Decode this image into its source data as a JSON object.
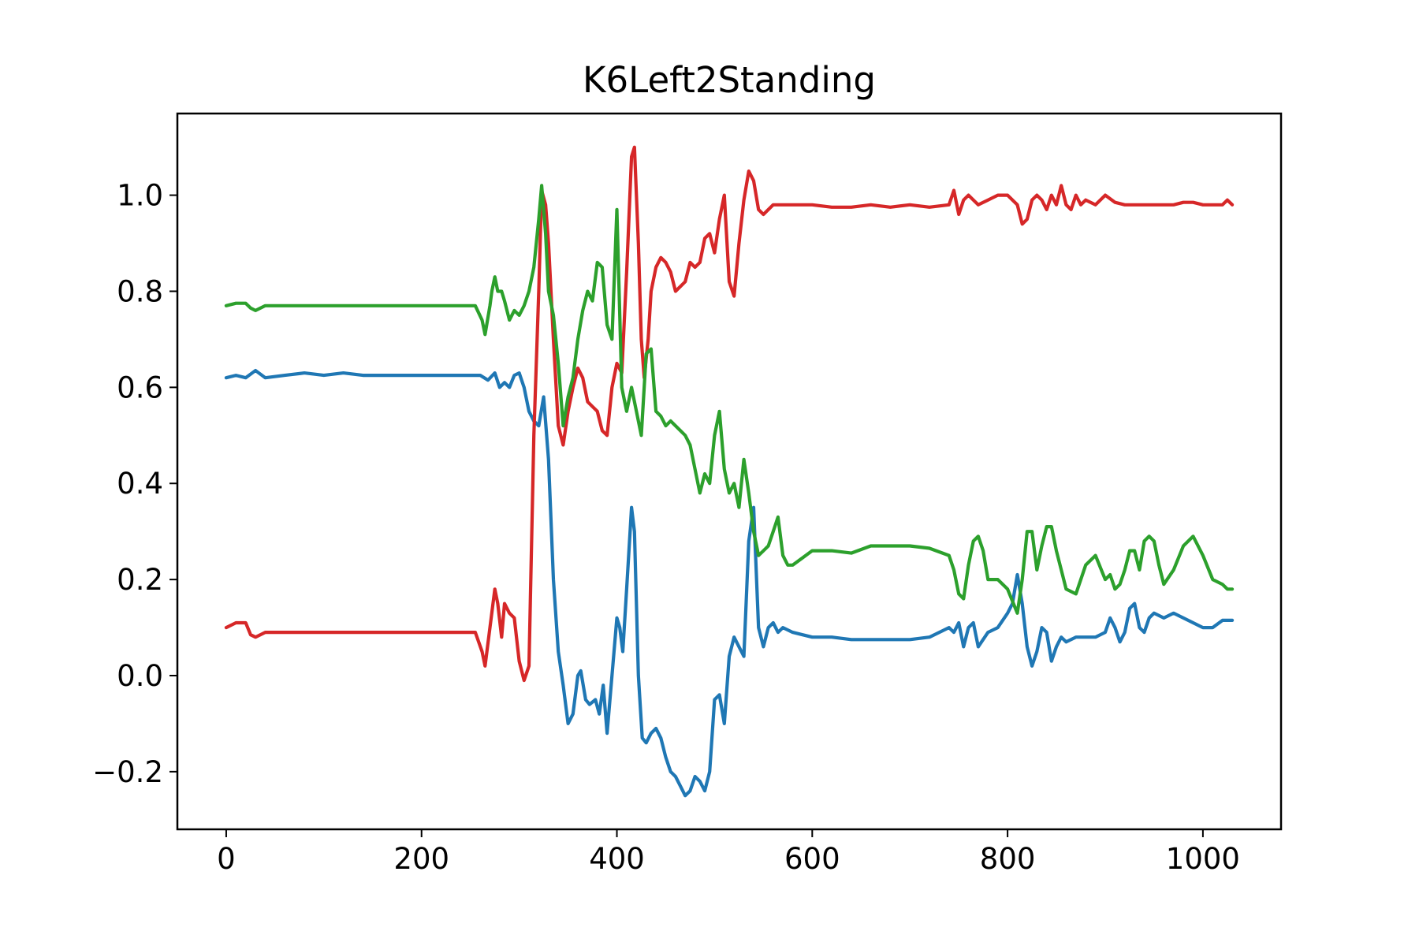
{
  "chart_data": {
    "type": "line",
    "title": "K6Left2Standing",
    "xlabel": "",
    "ylabel": "",
    "xlim": [
      -50,
      1080
    ],
    "ylim": [
      -0.32,
      1.17
    ],
    "xticks": [
      0,
      200,
      400,
      600,
      800,
      1000
    ],
    "yticks": [
      -0.2,
      0.0,
      0.2,
      0.4,
      0.6,
      0.8,
      1.0
    ],
    "xtick_labels": [
      "0",
      "200",
      "400",
      "600",
      "800",
      "1000"
    ],
    "ytick_labels": [
      "−0.2",
      "0.0",
      "0.2",
      "0.4",
      "0.6",
      "0.8",
      "1.0"
    ],
    "grid": false,
    "series": [
      {
        "color": "#1f77b4",
        "x": [
          0,
          10,
          20,
          30,
          40,
          60,
          80,
          100,
          120,
          140,
          160,
          180,
          200,
          220,
          240,
          260,
          268,
          275,
          280,
          285,
          290,
          295,
          300,
          305,
          310,
          315,
          320,
          325,
          330,
          335,
          340,
          345,
          350,
          355,
          360,
          363,
          368,
          372,
          378,
          382,
          386,
          390,
          395,
          400,
          403,
          406,
          410,
          415,
          418,
          422,
          426,
          430,
          435,
          440,
          445,
          450,
          455,
          460,
          465,
          470,
          475,
          480,
          485,
          490,
          495,
          500,
          505,
          510,
          515,
          520,
          525,
          530,
          535,
          540,
          545,
          550,
          555,
          560,
          565,
          570,
          580,
          600,
          620,
          640,
          660,
          680,
          700,
          720,
          740,
          745,
          750,
          755,
          760,
          765,
          770,
          780,
          790,
          800,
          805,
          810,
          815,
          820,
          825,
          830,
          835,
          840,
          845,
          850,
          855,
          860,
          870,
          880,
          890,
          900,
          905,
          910,
          915,
          920,
          925,
          930,
          935,
          940,
          945,
          950,
          960,
          970,
          980,
          990,
          1000,
          1010,
          1020,
          1030
        ],
        "y": [
          0.62,
          0.625,
          0.62,
          0.635,
          0.62,
          0.625,
          0.63,
          0.625,
          0.63,
          0.625,
          0.625,
          0.625,
          0.625,
          0.625,
          0.625,
          0.625,
          0.615,
          0.63,
          0.6,
          0.61,
          0.6,
          0.625,
          0.63,
          0.6,
          0.55,
          0.53,
          0.52,
          0.58,
          0.45,
          0.2,
          0.05,
          -0.02,
          -0.1,
          -0.08,
          0.0,
          0.01,
          -0.05,
          -0.06,
          -0.05,
          -0.08,
          -0.02,
          -0.12,
          0.0,
          0.12,
          0.1,
          0.05,
          0.18,
          0.35,
          0.3,
          0.0,
          -0.13,
          -0.14,
          -0.12,
          -0.11,
          -0.13,
          -0.17,
          -0.2,
          -0.21,
          -0.23,
          -0.25,
          -0.24,
          -0.21,
          -0.22,
          -0.24,
          -0.2,
          -0.05,
          -0.04,
          -0.1,
          0.04,
          0.08,
          0.06,
          0.04,
          0.28,
          0.35,
          0.1,
          0.06,
          0.1,
          0.11,
          0.09,
          0.1,
          0.09,
          0.08,
          0.08,
          0.075,
          0.075,
          0.075,
          0.075,
          0.08,
          0.1,
          0.09,
          0.11,
          0.06,
          0.1,
          0.11,
          0.06,
          0.09,
          0.1,
          0.13,
          0.15,
          0.21,
          0.15,
          0.06,
          0.02,
          0.05,
          0.1,
          0.09,
          0.03,
          0.06,
          0.08,
          0.07,
          0.08,
          0.08,
          0.08,
          0.09,
          0.12,
          0.1,
          0.07,
          0.09,
          0.14,
          0.15,
          0.1,
          0.09,
          0.12,
          0.13,
          0.12,
          0.13,
          0.12,
          0.11,
          0.1,
          0.1,
          0.115,
          0.115
        ]
      },
      {
        "color": "#d62728",
        "x": [
          0,
          10,
          20,
          25,
          30,
          40,
          60,
          80,
          100,
          120,
          140,
          160,
          180,
          200,
          220,
          240,
          255,
          262,
          265,
          270,
          275,
          278,
          282,
          285,
          290,
          295,
          300,
          305,
          310,
          315,
          320,
          323,
          327,
          330,
          335,
          340,
          345,
          350,
          355,
          360,
          365,
          370,
          375,
          380,
          385,
          390,
          395,
          400,
          405,
          410,
          415,
          418,
          422,
          425,
          428,
          432,
          435,
          440,
          445,
          450,
          455,
          460,
          465,
          470,
          475,
          480,
          485,
          490,
          495,
          500,
          505,
          510,
          515,
          520,
          525,
          530,
          535,
          540,
          545,
          550,
          560,
          580,
          600,
          620,
          640,
          660,
          680,
          700,
          720,
          740,
          745,
          750,
          755,
          760,
          770,
          780,
          790,
          800,
          810,
          815,
          820,
          825,
          830,
          835,
          840,
          845,
          850,
          855,
          860,
          865,
          870,
          875,
          880,
          890,
          900,
          910,
          920,
          930,
          940,
          950,
          960,
          970,
          980,
          990,
          1000,
          1010,
          1020,
          1025,
          1030
        ],
        "y": [
          0.1,
          0.11,
          0.11,
          0.085,
          0.08,
          0.09,
          0.09,
          0.09,
          0.09,
          0.09,
          0.09,
          0.09,
          0.09,
          0.09,
          0.09,
          0.09,
          0.09,
          0.05,
          0.02,
          0.1,
          0.18,
          0.15,
          0.08,
          0.15,
          0.13,
          0.12,
          0.03,
          -0.01,
          0.02,
          0.5,
          0.8,
          1.01,
          0.98,
          0.9,
          0.7,
          0.52,
          0.48,
          0.55,
          0.6,
          0.64,
          0.62,
          0.57,
          0.56,
          0.55,
          0.51,
          0.5,
          0.6,
          0.65,
          0.63,
          0.84,
          1.08,
          1.1,
          0.9,
          0.7,
          0.62,
          0.7,
          0.8,
          0.85,
          0.87,
          0.86,
          0.84,
          0.8,
          0.81,
          0.82,
          0.86,
          0.85,
          0.86,
          0.91,
          0.92,
          0.88,
          0.95,
          1.0,
          0.82,
          0.79,
          0.9,
          0.99,
          1.05,
          1.03,
          0.97,
          0.96,
          0.98,
          0.98,
          0.98,
          0.975,
          0.975,
          0.98,
          0.975,
          0.98,
          0.975,
          0.98,
          1.01,
          0.96,
          0.99,
          1.0,
          0.98,
          0.99,
          1.0,
          1.0,
          0.98,
          0.94,
          0.95,
          0.99,
          1.0,
          0.99,
          0.97,
          1.0,
          0.98,
          1.02,
          0.98,
          0.97,
          1.0,
          0.98,
          0.99,
          0.98,
          1.0,
          0.985,
          0.98,
          0.98,
          0.98,
          0.98,
          0.98,
          0.98,
          0.985,
          0.985,
          0.98,
          0.98,
          0.98,
          0.99,
          0.98
        ]
      },
      {
        "color": "#2ca02c",
        "x": [
          0,
          10,
          20,
          25,
          30,
          40,
          60,
          80,
          100,
          120,
          140,
          160,
          180,
          200,
          220,
          240,
          255,
          262,
          265,
          270,
          272,
          275,
          278,
          282,
          285,
          290,
          295,
          300,
          305,
          310,
          315,
          320,
          323,
          327,
          330,
          335,
          340,
          345,
          350,
          355,
          360,
          365,
          370,
          375,
          380,
          385,
          390,
          395,
          400,
          405,
          410,
          415,
          420,
          425,
          430,
          435,
          440,
          445,
          450,
          455,
          460,
          465,
          470,
          475,
          480,
          485,
          490,
          495,
          500,
          505,
          510,
          515,
          520,
          525,
          530,
          535,
          540,
          545,
          550,
          555,
          560,
          565,
          570,
          575,
          580,
          600,
          620,
          640,
          660,
          680,
          700,
          720,
          740,
          745,
          750,
          755,
          760,
          765,
          770,
          775,
          780,
          790,
          800,
          810,
          815,
          820,
          825,
          830,
          835,
          840,
          845,
          850,
          855,
          860,
          870,
          880,
          890,
          900,
          905,
          910,
          915,
          920,
          925,
          930,
          935,
          940,
          945,
          950,
          955,
          960,
          970,
          980,
          990,
          1000,
          1010,
          1020,
          1025,
          1030
        ],
        "y": [
          0.77,
          0.775,
          0.775,
          0.765,
          0.76,
          0.77,
          0.77,
          0.77,
          0.77,
          0.77,
          0.77,
          0.77,
          0.77,
          0.77,
          0.77,
          0.77,
          0.77,
          0.74,
          0.71,
          0.77,
          0.8,
          0.83,
          0.8,
          0.8,
          0.78,
          0.74,
          0.76,
          0.75,
          0.77,
          0.8,
          0.85,
          0.95,
          1.02,
          0.92,
          0.8,
          0.75,
          0.65,
          0.52,
          0.58,
          0.62,
          0.7,
          0.76,
          0.8,
          0.78,
          0.86,
          0.85,
          0.73,
          0.7,
          0.97,
          0.6,
          0.55,
          0.6,
          0.55,
          0.5,
          0.67,
          0.68,
          0.55,
          0.54,
          0.52,
          0.53,
          0.52,
          0.51,
          0.5,
          0.48,
          0.43,
          0.38,
          0.42,
          0.4,
          0.5,
          0.55,
          0.43,
          0.38,
          0.4,
          0.35,
          0.45,
          0.38,
          0.3,
          0.25,
          0.26,
          0.27,
          0.3,
          0.33,
          0.25,
          0.23,
          0.23,
          0.26,
          0.26,
          0.255,
          0.27,
          0.27,
          0.27,
          0.265,
          0.25,
          0.22,
          0.17,
          0.16,
          0.23,
          0.28,
          0.29,
          0.26,
          0.2,
          0.2,
          0.18,
          0.13,
          0.2,
          0.3,
          0.3,
          0.22,
          0.27,
          0.31,
          0.31,
          0.26,
          0.22,
          0.18,
          0.17,
          0.23,
          0.25,
          0.2,
          0.21,
          0.18,
          0.19,
          0.22,
          0.26,
          0.26,
          0.22,
          0.28,
          0.29,
          0.28,
          0.23,
          0.19,
          0.22,
          0.27,
          0.29,
          0.25,
          0.2,
          0.19,
          0.18,
          0.18
        ]
      }
    ]
  }
}
